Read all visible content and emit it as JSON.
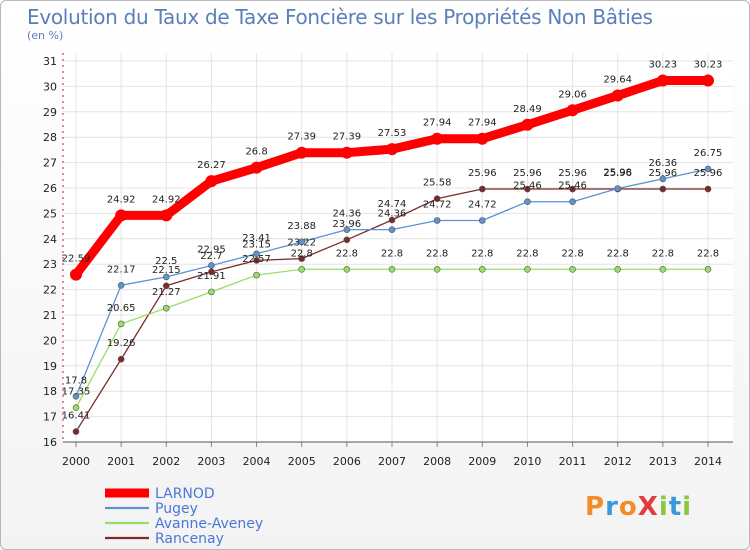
{
  "chart_data": {
    "type": "line",
    "title": "Evolution du Taux de Taxe Foncière sur les Propriétés Non Bâties",
    "ylabel": "(en %)",
    "xlabel": "",
    "categories": [
      "2000",
      "2001",
      "2002",
      "2003",
      "2004",
      "2005",
      "2006",
      "2007",
      "2008",
      "2009",
      "2010",
      "2011",
      "2012",
      "2013",
      "2014"
    ],
    "ylim": [
      16,
      31
    ],
    "yticks": [
      16,
      17,
      18,
      19,
      20,
      21,
      22,
      23,
      24,
      25,
      26,
      27,
      28,
      29,
      30,
      31
    ],
    "grid": true,
    "legend_position": "bottom-left",
    "series": [
      {
        "name": "LARNOD",
        "color": "#ff0000",
        "values": [
          22.59,
          24.92,
          24.92,
          26.27,
          26.8,
          27.39,
          27.39,
          27.53,
          27.94,
          27.94,
          28.49,
          29.06,
          29.64,
          30.23,
          30.23
        ],
        "labels": [
          "22.59",
          "24.92",
          "24.92",
          "26.27",
          "26.8",
          "27.39",
          "27.39",
          "27.53",
          "27.94",
          "27.94",
          "28.49",
          "29.06",
          "29.64",
          "30.23",
          "30.23"
        ]
      },
      {
        "name": "Pugey",
        "color": "#5b94d0",
        "values": [
          17.8,
          22.17,
          22.5,
          22.95,
          23.41,
          23.88,
          24.36,
          24.36,
          24.72,
          24.72,
          25.46,
          25.46,
          25.98,
          26.36,
          26.75
        ],
        "labels": [
          "17.8",
          "22.17",
          "22.5",
          "22.95",
          "23.41",
          "23.88",
          "24.36",
          "24.36",
          "24.72",
          "24.72",
          "25.46",
          "25.46",
          "25.98",
          "26.36",
          "26.75"
        ]
      },
      {
        "name": "Avanne-Aveney",
        "color": "#99dd66",
        "values": [
          17.35,
          20.65,
          21.27,
          21.91,
          22.57,
          22.8,
          22.8,
          22.8,
          22.8,
          22.8,
          22.8,
          22.8,
          22.8,
          22.8,
          22.8
        ],
        "labels": [
          "17.35",
          "20.65",
          "21.27",
          "21.91",
          "22.57",
          "22.8",
          "22.8",
          "22.8",
          "22.8",
          "22.8",
          "22.8",
          "22.8",
          "22.8",
          "22.8",
          "22.8"
        ]
      },
      {
        "name": "Rancenay",
        "color": "#7a2a2a",
        "values": [
          16.41,
          19.26,
          22.15,
          22.7,
          23.15,
          23.22,
          23.96,
          24.74,
          25.58,
          25.96,
          25.96,
          25.96,
          25.96,
          25.96,
          25.96
        ],
        "labels": [
          "16.41",
          "19.26",
          "22.15",
          "22.7",
          "23.15",
          "23.22",
          "23.96",
          "24.74",
          "25.58",
          "25.96",
          "25.96",
          "25.96",
          "25.96",
          "25.96",
          "25.96"
        ]
      }
    ]
  },
  "logo": {
    "text": "ProXiti",
    "colors": [
      "#f28c28",
      "#3a9ad9",
      "#8cc63f",
      "#e23b3b"
    ]
  }
}
